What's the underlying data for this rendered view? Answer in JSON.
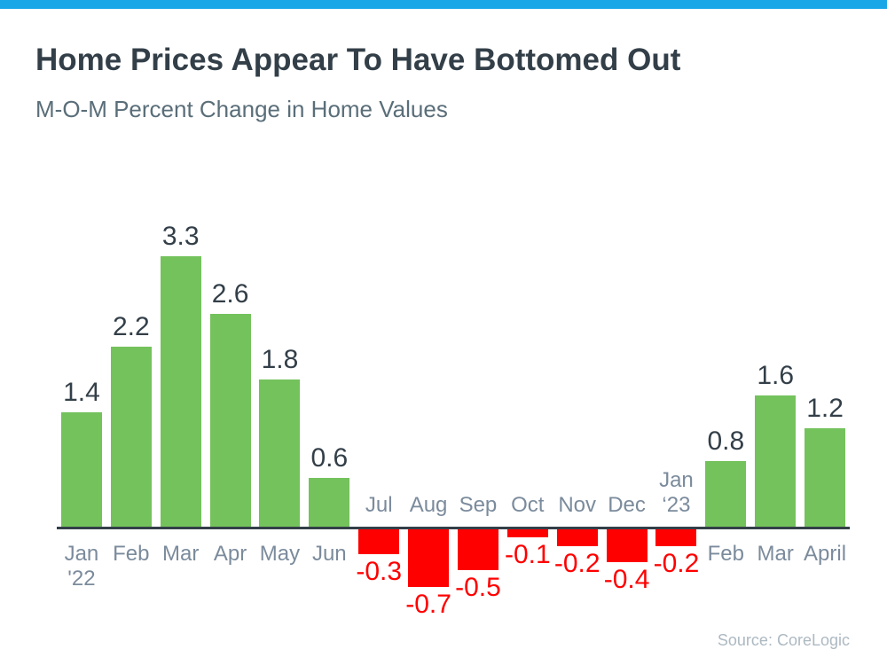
{
  "header": {
    "title": "Home Prices Appear To Have Bottomed Out",
    "subtitle": "M-O-M Percent Change in Home Values"
  },
  "source_label": "Source: CoreLogic",
  "colors": {
    "topbar": "#1aa7e8",
    "positive_bar": "#74c25c",
    "negative_bar": "#ff0000",
    "axis": "#333f48",
    "positive_value_text": "#333f48",
    "negative_value_text": "#ff0000",
    "month_text": "#7b8b9c",
    "title_text": "#333f48",
    "subtitle_text": "#5a6e79",
    "source_text": "#adb9c2"
  },
  "chart_data": {
    "type": "bar",
    "title": "Home Prices Appear To Have Bottomed Out",
    "subtitle": "M-O-M Percent Change in Home Values",
    "xlabel": "",
    "ylabel": "M-O-M percent change",
    "ylim": [
      -0.7,
      3.3
    ],
    "grid": false,
    "legend": "none",
    "categories": [
      "Jan '22",
      "Feb",
      "Mar",
      "Apr",
      "May",
      "Jun",
      "Jul",
      "Aug",
      "Sep",
      "Oct",
      "Nov",
      "Dec",
      "Jan ‘23",
      "Feb",
      "Mar",
      "April"
    ],
    "category_label_lines": [
      [
        "Jan",
        "'22"
      ],
      [
        "Feb"
      ],
      [
        "Mar"
      ],
      [
        "Apr"
      ],
      [
        "May"
      ],
      [
        "Jun"
      ],
      [
        "Jul"
      ],
      [
        "Aug"
      ],
      [
        "Sep"
      ],
      [
        "Oct"
      ],
      [
        "Nov"
      ],
      [
        "Dec"
      ],
      [
        "Jan",
        "‘23"
      ],
      [
        "Feb"
      ],
      [
        "Mar"
      ],
      [
        "April"
      ]
    ],
    "values": [
      1.4,
      2.2,
      3.3,
      2.6,
      1.8,
      0.6,
      -0.3,
      -0.7,
      -0.5,
      -0.1,
      -0.2,
      -0.4,
      -0.2,
      0.8,
      1.6,
      1.2
    ],
    "value_labels": [
      "1.4",
      "2.2",
      "3.3",
      "2.6",
      "1.8",
      "0.6",
      "-0.3",
      "-0.7",
      "-0.5",
      "-0.1",
      "-0.2",
      "-0.4",
      "-0.2",
      "0.8",
      "1.6",
      "1.2"
    ]
  }
}
